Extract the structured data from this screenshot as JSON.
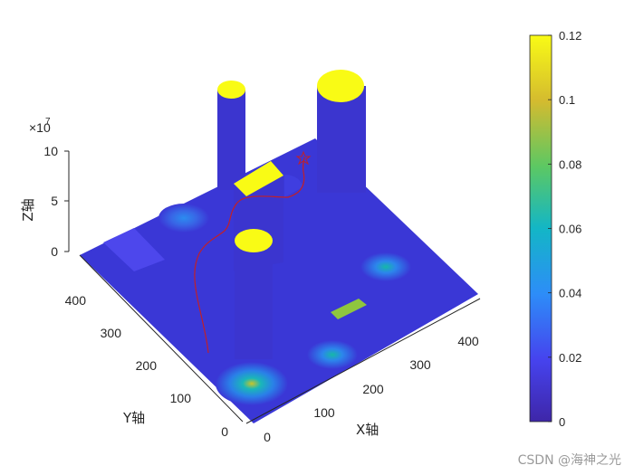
{
  "chart_data": {
    "type": "surface",
    "xlabel": "X轴",
    "ylabel": "Y轴",
    "zlabel": "Z轴",
    "x_ticks": [
      "0",
      "100",
      "200",
      "300",
      "400"
    ],
    "y_ticks": [
      "0",
      "100",
      "200",
      "300",
      "400"
    ],
    "z_ticks": [
      "0",
      "5",
      "10"
    ],
    "z_exponent_base": "×10",
    "z_exponent_power": "7",
    "xlim": [
      0,
      500
    ],
    "ylim": [
      0,
      500
    ],
    "zlim": [
      0,
      100000000
    ],
    "colormap": "parula",
    "colorbar": {
      "ticks": [
        "0",
        "0.02",
        "0.04",
        "0.06",
        "0.08",
        "0.1",
        "0.12"
      ],
      "range": [
        0,
        0.12
      ],
      "colors": [
        "#3e26a8",
        "#4643ee",
        "#2d8df8",
        "#13b6c6",
        "#5cc863",
        "#d4bb2f",
        "#f9fb15"
      ]
    },
    "colors": {
      "base": "#3a37d6",
      "cylinder": "#3b35cf",
      "cap": "#f9fb15",
      "path": "#c0202a"
    }
  },
  "watermark": "CSDN @海神之光"
}
